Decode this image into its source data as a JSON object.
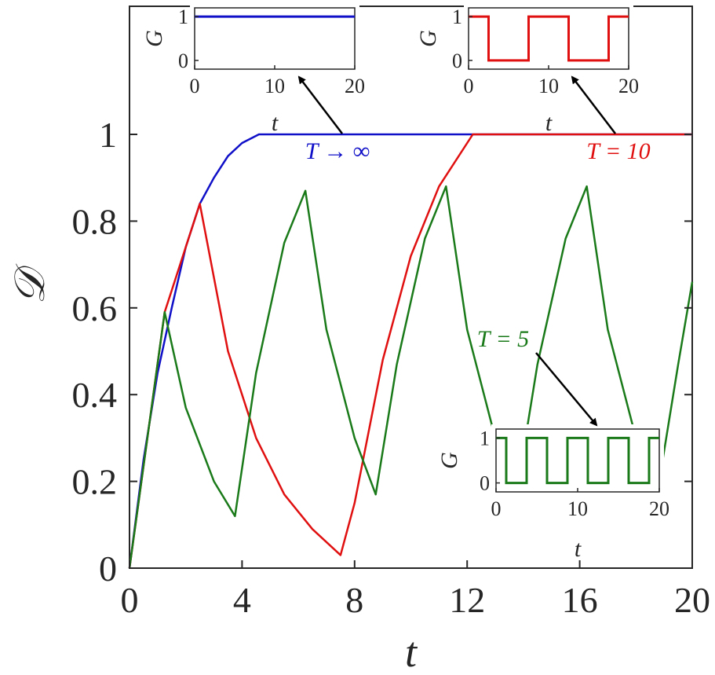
{
  "chart_data": [
    {
      "type": "line",
      "title": "",
      "xlabel": "t",
      "ylabel": "𝒟",
      "xlim": [
        0,
        20
      ],
      "ylim": [
        0,
        1.0
      ],
      "xticks": [
        "0",
        "4",
        "8",
        "12",
        "16",
        "20"
      ],
      "yticks": [
        "0",
        "0.2",
        "0.4",
        "0.6",
        "0.8",
        "1"
      ],
      "grid": false,
      "colors": {
        "blue": "#1010c8",
        "red": "#e01010",
        "green": "#1a7a1a"
      },
      "series": [
        {
          "label": "T → ∞",
          "color": "#1010c8",
          "description": "charges 0→1 along curve, saturates at t≈4.6",
          "x": [
            0,
            0.5,
            1.0,
            1.5,
            2.0,
            2.5,
            3.0,
            3.5,
            4.0,
            4.6,
            20
          ],
          "y": [
            0,
            0.25,
            0.45,
            0.6,
            0.74,
            0.84,
            0.9,
            0.95,
            0.98,
            1.0,
            1.0
          ]
        },
        {
          "label": "T = 10",
          "color": "#e01010",
          "x": [
            0,
            1.25,
            2.5,
            3.5,
            4.5,
            5.5,
            6.5,
            7.5,
            8.0,
            9.0,
            10.0,
            11.0,
            12.2,
            20
          ],
          "y": [
            0,
            0.59,
            0.84,
            0.5,
            0.3,
            0.17,
            0.09,
            0.03,
            0.15,
            0.48,
            0.72,
            0.88,
            1.0,
            1.0
          ]
        },
        {
          "label": "T = 5",
          "color": "#1a7a1a",
          "x": [
            0,
            1.25,
            2.0,
            3.0,
            3.75,
            4.5,
            5.5,
            6.25,
            7.0,
            8.0,
            8.75,
            9.5,
            10.5,
            11.25,
            12.0,
            13.0,
            13.75,
            14.5,
            15.5,
            16.25,
            17.0,
            18.0,
            18.75,
            19.5,
            20.0
          ],
          "y": [
            0,
            0.59,
            0.37,
            0.2,
            0.12,
            0.45,
            0.75,
            0.87,
            0.55,
            0.3,
            0.17,
            0.47,
            0.76,
            0.88,
            0.55,
            0.3,
            0.17,
            0.47,
            0.76,
            0.88,
            0.55,
            0.3,
            0.17,
            0.47,
            0.66
          ]
        }
      ],
      "annotations": [
        {
          "text": "T → ∞",
          "color": "#1010c8"
        },
        {
          "text": "T = 10",
          "color": "#e01010"
        },
        {
          "text": "T = 5",
          "color": "#1a7a1a"
        }
      ]
    },
    {
      "type": "line",
      "title": "",
      "xlabel": "t",
      "ylabel": "G",
      "xlim": [
        0,
        20
      ],
      "ylim": [
        -0.2,
        1.2
      ],
      "xticks": [
        "0",
        "10",
        "20"
      ],
      "yticks": [
        "0",
        "1"
      ],
      "series": [
        {
          "label": "T → ∞",
          "color": "#1010c8",
          "x": [
            0,
            20
          ],
          "y": [
            1,
            1
          ]
        }
      ]
    },
    {
      "type": "line",
      "title": "",
      "xlabel": "t",
      "ylabel": "G",
      "xlim": [
        0,
        20
      ],
      "ylim": [
        -0.2,
        1.2
      ],
      "xticks": [
        "0",
        "10",
        "20"
      ],
      "yticks": [
        "0",
        "1"
      ],
      "series": [
        {
          "label": "T = 10",
          "color": "#e01010",
          "x": [
            0,
            2.5,
            2.5,
            7.5,
            7.5,
            12.5,
            12.5,
            17.5,
            17.5,
            20
          ],
          "y": [
            1,
            1,
            0,
            0,
            1,
            1,
            0,
            0,
            1,
            1
          ]
        }
      ]
    },
    {
      "type": "line",
      "title": "",
      "xlabel": "t",
      "ylabel": "G",
      "xlim": [
        0,
        20
      ],
      "ylim": [
        -0.2,
        1.2
      ],
      "xticks": [
        "0",
        "10",
        "20"
      ],
      "yticks": [
        "0",
        "1"
      ],
      "series": [
        {
          "label": "T = 5",
          "color": "#1a7a1a",
          "x": [
            0,
            1.25,
            1.25,
            3.75,
            3.75,
            6.25,
            6.25,
            8.75,
            8.75,
            11.25,
            11.25,
            13.75,
            13.75,
            16.25,
            16.25,
            18.75,
            18.75,
            20
          ],
          "y": [
            1,
            1,
            0,
            0,
            1,
            1,
            0,
            0,
            1,
            1,
            0,
            0,
            1,
            1,
            0,
            0,
            1,
            1
          ]
        }
      ]
    }
  ]
}
